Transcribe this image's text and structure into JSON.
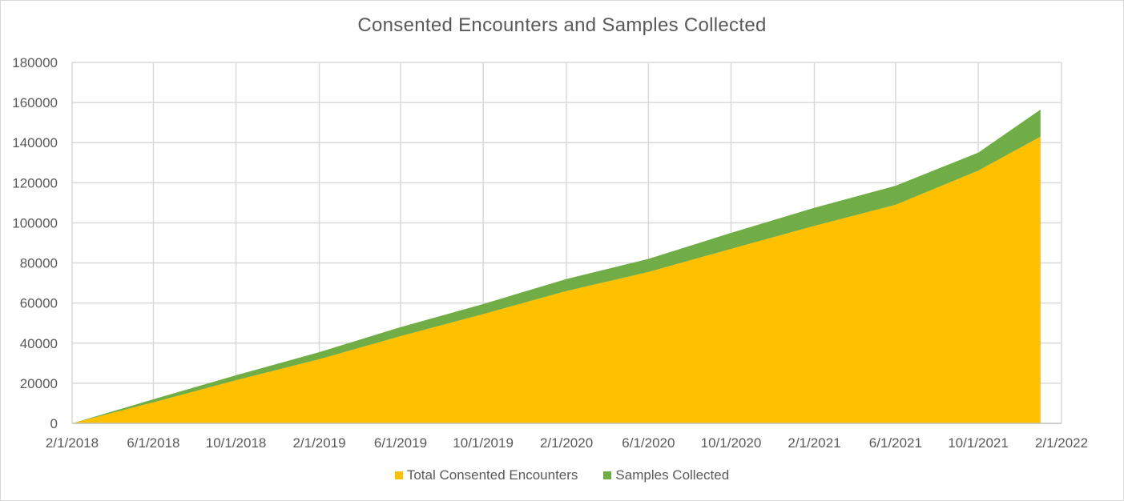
{
  "chart_data": {
    "type": "area",
    "stacked": true,
    "title": "Consented Encounters and Samples Collected",
    "xlabel": "",
    "ylabel": "",
    "x_tick_labels": [
      "2/1/2018",
      "6/1/2018",
      "10/1/2018",
      "2/1/2019",
      "6/1/2019",
      "10/1/2019",
      "2/1/2020",
      "6/1/2020",
      "10/1/2020",
      "2/1/2021",
      "6/1/2021",
      "10/1/2021",
      "2/1/2022"
    ],
    "y_tick_labels": [
      "0",
      "20000",
      "40000",
      "60000",
      "80000",
      "100000",
      "120000",
      "140000",
      "160000",
      "180000"
    ],
    "ylim": [
      0,
      180000
    ],
    "xlim": [
      "2/1/2018",
      "2/1/2022"
    ],
    "grid": true,
    "legend_position": "bottom",
    "x": [
      "2/1/2018",
      "6/1/2018",
      "10/1/2018",
      "2/1/2019",
      "6/1/2019",
      "10/1/2019",
      "2/1/2020",
      "6/1/2020",
      "10/1/2020",
      "2/1/2021",
      "6/1/2021",
      "10/1/2021",
      "1/1/2022"
    ],
    "series": [
      {
        "name": "Total Consented Encounters",
        "color": "#ffc000",
        "values": [
          0,
          10500,
          21500,
          32000,
          43500,
          54500,
          66000,
          75500,
          87000,
          98500,
          109000,
          126000,
          143000
        ]
      },
      {
        "name": "Samples Collected",
        "color": "#70ad47",
        "values": [
          0,
          1500,
          2500,
          3500,
          4500,
          5000,
          6000,
          6500,
          8000,
          9000,
          9500,
          9000,
          13500
        ]
      }
    ]
  }
}
